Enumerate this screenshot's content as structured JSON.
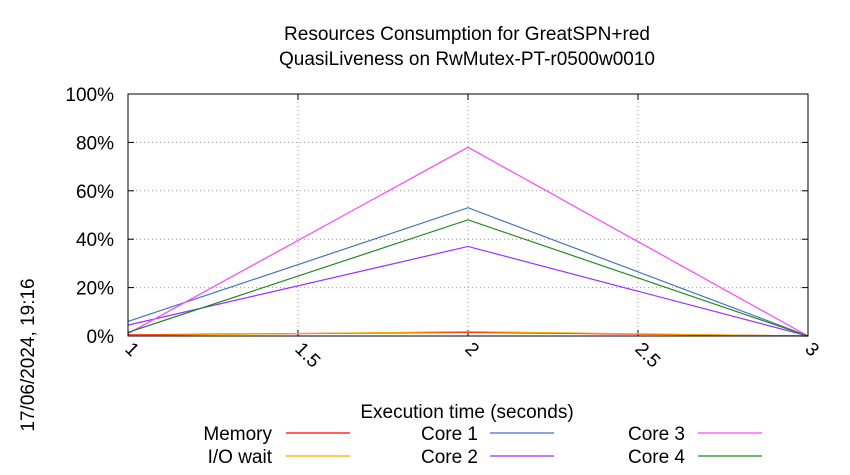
{
  "chart_data": {
    "type": "line",
    "title": "Resources Consumption for GreatSPN+red",
    "subtitle": "QuasiLiveness on RwMutex-PT-r0500w0010",
    "xlabel": "Execution time (seconds)",
    "ylabel": "",
    "side_label": "17/06/2024, 19:16",
    "xlim": [
      1,
      3
    ],
    "ylim": [
      0,
      100
    ],
    "x_ticks": [
      "1",
      "1.5",
      "2",
      "2.5",
      "3"
    ],
    "y_ticks": [
      "0%",
      "20%",
      "40%",
      "60%",
      "80%",
      "100%"
    ],
    "grid": true,
    "legend_position": "bottom",
    "x": [
      1,
      2,
      3
    ],
    "series": [
      {
        "name": "Memory",
        "color": "#ff0000",
        "values": [
          0.5,
          1.5,
          0
        ]
      },
      {
        "name": "I/O wait",
        "color": "#ffa500",
        "values": [
          0.2,
          1.8,
          0
        ]
      },
      {
        "name": "Core 1",
        "color": "#4472c4",
        "values": [
          6,
          53,
          0
        ]
      },
      {
        "name": "Core 2",
        "color": "#9b30ff",
        "values": [
          4.5,
          37,
          0
        ]
      },
      {
        "name": "Core 3",
        "color": "#ff44ff",
        "values": [
          1,
          78,
          0
        ]
      },
      {
        "name": "Core 4",
        "color": "#228b22",
        "values": [
          1.5,
          48,
          0
        ]
      }
    ]
  }
}
